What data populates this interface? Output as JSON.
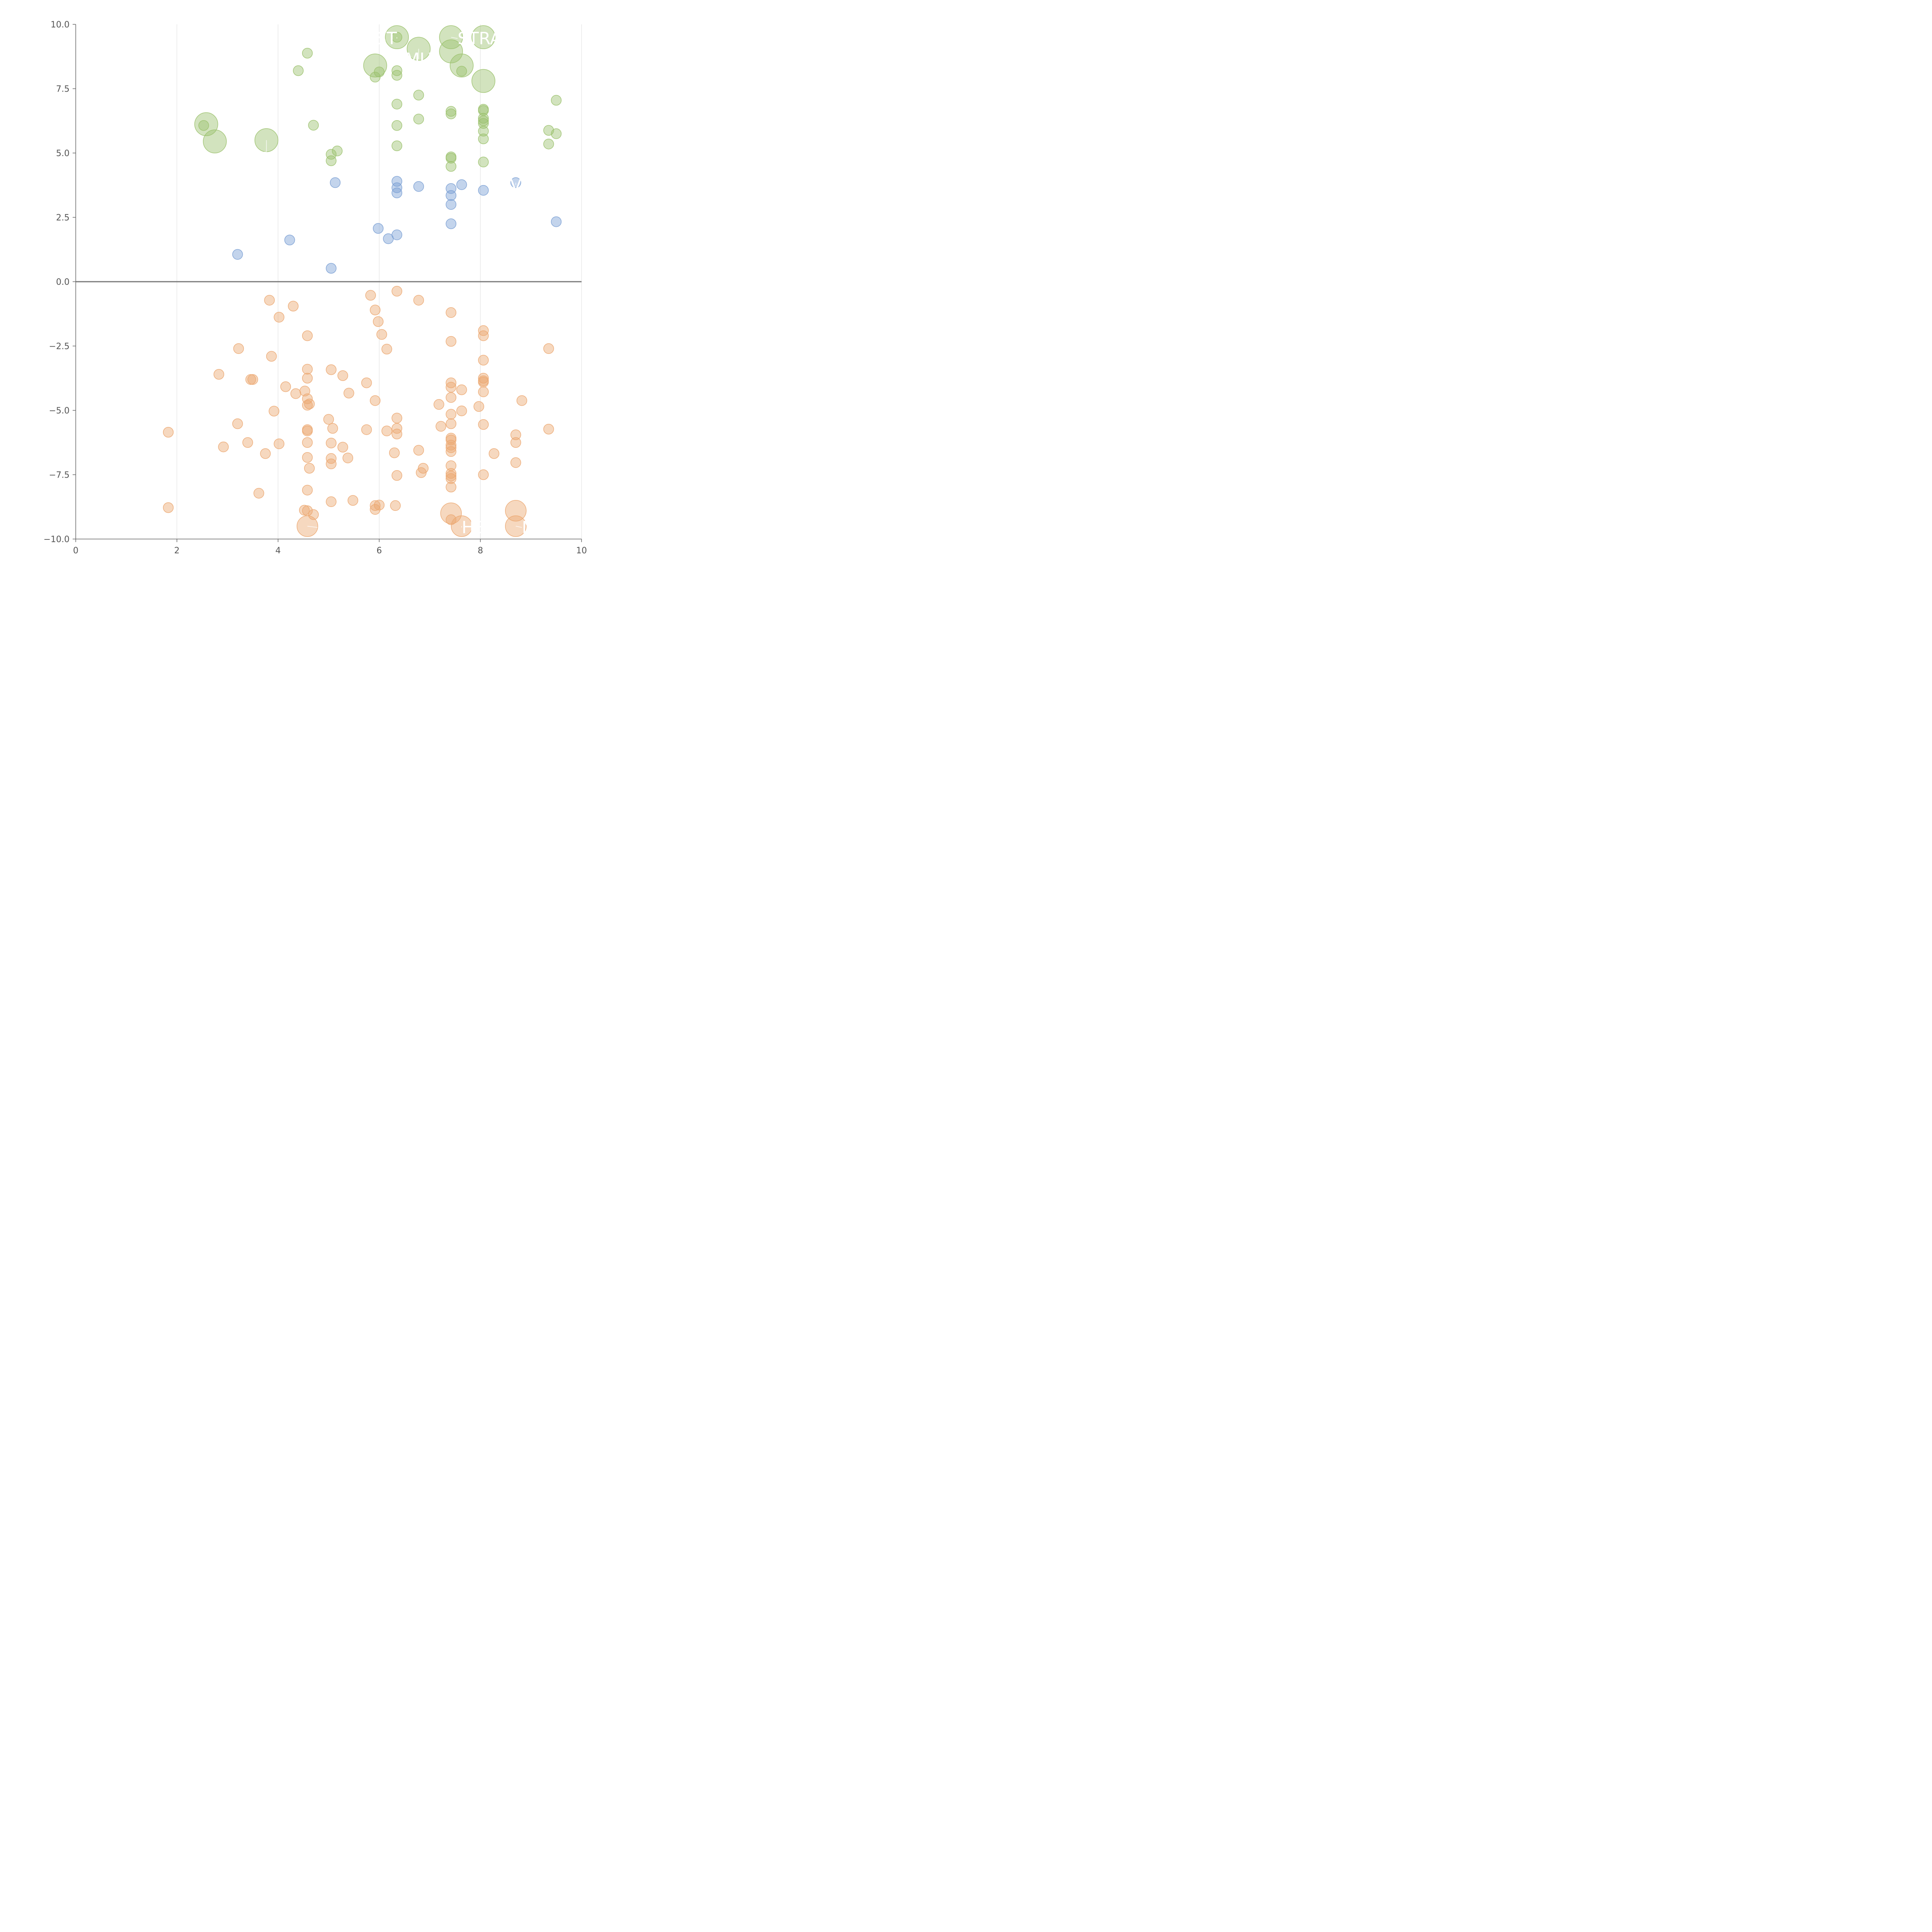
{
  "chart_data": {
    "type": "scatter",
    "title": "",
    "xlabel": "",
    "ylabel": "",
    "xlim": [
      0,
      10
    ],
    "ylim": [
      -10,
      10
    ],
    "x_ticks": [
      "0",
      "2",
      "4",
      "6",
      "8",
      "10"
    ],
    "y_ticks": [
      "10.0",
      "7.5",
      "5.0",
      "2.5",
      "0.0",
      "−2.5",
      "−5.0",
      "−7.5",
      "−10.0"
    ],
    "grid": "vertical",
    "zero_line": true,
    "series": [
      {
        "color": "#9cc26e",
        "points": [
          [
            6.35,
            9.5,
            30
          ],
          [
            7.42,
            9.5,
            30
          ],
          [
            8.06,
            9.5,
            30
          ],
          [
            6.78,
            9.05,
            30
          ],
          [
            7.42,
            8.95,
            30
          ],
          [
            5.92,
            8.4,
            30
          ],
          [
            7.63,
            8.4,
            30
          ],
          [
            8.06,
            7.8,
            30
          ],
          [
            2.58,
            6.12,
            30
          ],
          [
            2.75,
            5.45,
            30
          ],
          [
            3.77,
            5.5,
            30
          ],
          [
            6.35,
            9.5,
            13
          ],
          [
            4.58,
            8.88,
            13
          ],
          [
            4.4,
            8.2,
            13
          ],
          [
            6.0,
            8.15,
            13
          ],
          [
            5.92,
            7.95,
            13
          ],
          [
            6.35,
            8.2,
            13
          ],
          [
            6.35,
            8.02,
            13
          ],
          [
            7.63,
            8.18,
            13
          ],
          [
            6.78,
            7.25,
            13
          ],
          [
            9.5,
            7.05,
            13
          ],
          [
            6.35,
            6.9,
            13
          ],
          [
            8.06,
            6.7,
            13
          ],
          [
            8.06,
            6.65,
            13
          ],
          [
            7.42,
            6.62,
            13
          ],
          [
            7.42,
            6.52,
            13
          ],
          [
            8.06,
            6.35,
            13
          ],
          [
            8.06,
            6.25,
            13
          ],
          [
            8.06,
            6.15,
            13
          ],
          [
            6.78,
            6.32,
            13
          ],
          [
            4.7,
            6.08,
            13
          ],
          [
            6.35,
            6.07,
            13
          ],
          [
            2.53,
            6.07,
            13
          ],
          [
            9.35,
            5.88,
            13
          ],
          [
            8.06,
            5.85,
            13
          ],
          [
            9.5,
            5.75,
            13
          ],
          [
            8.06,
            5.55,
            13
          ],
          [
            9.35,
            5.35,
            13
          ],
          [
            6.35,
            5.28,
            13
          ],
          [
            5.17,
            5.08,
            13
          ],
          [
            5.05,
            4.95,
            13
          ],
          [
            5.05,
            4.7,
            13
          ],
          [
            7.42,
            4.85,
            13
          ],
          [
            7.42,
            4.8,
            13
          ],
          [
            8.06,
            4.65,
            13
          ],
          [
            7.42,
            4.48,
            13
          ]
        ]
      },
      {
        "color": "#7ba0d4",
        "points": [
          [
            5.13,
            3.85,
            13
          ],
          [
            6.35,
            3.9,
            13
          ],
          [
            6.35,
            3.65,
            13
          ],
          [
            6.35,
            3.45,
            13
          ],
          [
            6.78,
            3.7,
            13
          ],
          [
            7.42,
            3.62,
            13
          ],
          [
            7.42,
            3.35,
            13
          ],
          [
            7.42,
            3.0,
            13
          ],
          [
            7.63,
            3.77,
            13
          ],
          [
            8.06,
            3.55,
            13
          ],
          [
            8.7,
            3.85,
            13
          ],
          [
            9.5,
            2.33,
            13
          ],
          [
            7.42,
            2.25,
            13
          ],
          [
            5.98,
            2.07,
            13
          ],
          [
            6.35,
            1.82,
            13
          ],
          [
            6.18,
            1.67,
            13
          ],
          [
            4.23,
            1.62,
            13
          ],
          [
            3.2,
            1.06,
            13
          ],
          [
            5.05,
            0.52,
            13
          ]
        ]
      },
      {
        "color": "#eca872",
        "points": [
          [
            7.42,
            -9.0,
            27
          ],
          [
            8.7,
            -8.9,
            27
          ],
          [
            4.58,
            -9.5,
            27
          ],
          [
            7.63,
            -9.5,
            27
          ],
          [
            8.7,
            -9.5,
            27
          ],
          [
            6.35,
            -0.37,
            13
          ],
          [
            5.83,
            -0.53,
            13
          ],
          [
            3.83,
            -0.72,
            13
          ],
          [
            6.78,
            -0.72,
            13
          ],
          [
            4.3,
            -0.95,
            13
          ],
          [
            5.92,
            -1.1,
            13
          ],
          [
            7.42,
            -1.2,
            13
          ],
          [
            4.02,
            -1.38,
            13
          ],
          [
            5.98,
            -1.55,
            13
          ],
          [
            6.05,
            -2.05,
            13
          ],
          [
            4.58,
            -2.1,
            13
          ],
          [
            8.06,
            -1.9,
            13
          ],
          [
            8.06,
            -2.1,
            13
          ],
          [
            7.42,
            -2.32,
            13
          ],
          [
            3.22,
            -2.6,
            13
          ],
          [
            6.15,
            -2.62,
            13
          ],
          [
            9.35,
            -2.6,
            13
          ],
          [
            3.87,
            -2.9,
            13
          ],
          [
            8.06,
            -3.05,
            13
          ],
          [
            4.58,
            -3.4,
            13
          ],
          [
            5.05,
            -3.42,
            13
          ],
          [
            2.83,
            -3.6,
            13
          ],
          [
            5.28,
            -3.65,
            13
          ],
          [
            4.58,
            -3.75,
            13
          ],
          [
            3.5,
            -3.8,
            13
          ],
          [
            3.46,
            -3.8,
            13
          ],
          [
            8.06,
            -3.75,
            13
          ],
          [
            8.06,
            -3.85,
            13
          ],
          [
            8.06,
            -3.9,
            13
          ],
          [
            5.75,
            -3.93,
            13
          ],
          [
            7.42,
            -3.93,
            13
          ],
          [
            7.42,
            -4.1,
            13
          ],
          [
            4.15,
            -4.08,
            13
          ],
          [
            7.63,
            -4.2,
            13
          ],
          [
            4.53,
            -4.25,
            13
          ],
          [
            8.06,
            -4.28,
            13
          ],
          [
            4.35,
            -4.35,
            13
          ],
          [
            5.4,
            -4.33,
            13
          ],
          [
            4.58,
            -4.55,
            13
          ],
          [
            7.42,
            -4.5,
            13
          ],
          [
            5.92,
            -4.62,
            13
          ],
          [
            8.82,
            -4.62,
            13
          ],
          [
            4.62,
            -4.75,
            13
          ],
          [
            4.58,
            -4.8,
            13
          ],
          [
            7.18,
            -4.77,
            13
          ],
          [
            7.97,
            -4.85,
            13
          ],
          [
            3.92,
            -5.03,
            13
          ],
          [
            7.63,
            -5.02,
            13
          ],
          [
            7.42,
            -5.15,
            13
          ],
          [
            6.35,
            -5.3,
            13
          ],
          [
            5.0,
            -5.35,
            13
          ],
          [
            3.2,
            -5.52,
            13
          ],
          [
            7.42,
            -5.52,
            13
          ],
          [
            8.06,
            -5.55,
            13
          ],
          [
            7.22,
            -5.62,
            13
          ],
          [
            5.08,
            -5.7,
            13
          ],
          [
            6.35,
            -5.7,
            13
          ],
          [
            9.35,
            -5.73,
            13
          ],
          [
            5.75,
            -5.75,
            13
          ],
          [
            4.58,
            -5.75,
            13
          ],
          [
            4.58,
            -5.8,
            13
          ],
          [
            6.15,
            -5.8,
            13
          ],
          [
            1.83,
            -5.85,
            13
          ],
          [
            6.35,
            -5.92,
            13
          ],
          [
            8.7,
            -5.95,
            13
          ],
          [
            7.42,
            -6.08,
            13
          ],
          [
            7.42,
            -6.15,
            13
          ],
          [
            4.58,
            -6.25,
            13
          ],
          [
            5.05,
            -6.27,
            13
          ],
          [
            3.4,
            -6.25,
            13
          ],
          [
            4.02,
            -6.3,
            13
          ],
          [
            8.7,
            -6.25,
            13
          ],
          [
            7.42,
            -6.35,
            13
          ],
          [
            7.42,
            -6.45,
            13
          ],
          [
            2.92,
            -6.42,
            13
          ],
          [
            5.28,
            -6.43,
            13
          ],
          [
            7.42,
            -6.6,
            13
          ],
          [
            6.78,
            -6.55,
            13
          ],
          [
            6.3,
            -6.65,
            13
          ],
          [
            3.75,
            -6.68,
            13
          ],
          [
            8.27,
            -6.68,
            13
          ],
          [
            4.58,
            -6.83,
            13
          ],
          [
            5.05,
            -6.87,
            13
          ],
          [
            5.38,
            -6.85,
            13
          ],
          [
            8.7,
            -7.03,
            13
          ],
          [
            5.05,
            -7.08,
            13
          ],
          [
            7.42,
            -7.15,
            13
          ],
          [
            4.62,
            -7.25,
            13
          ],
          [
            6.87,
            -7.25,
            13
          ],
          [
            6.83,
            -7.42,
            13
          ],
          [
            7.42,
            -7.45,
            13
          ],
          [
            7.42,
            -7.55,
            13
          ],
          [
            6.35,
            -7.53,
            13
          ],
          [
            8.06,
            -7.5,
            13
          ],
          [
            7.42,
            -7.65,
            13
          ],
          [
            7.42,
            -7.98,
            13
          ],
          [
            4.58,
            -8.1,
            13
          ],
          [
            3.62,
            -8.22,
            13
          ],
          [
            5.48,
            -8.5,
            13
          ],
          [
            5.05,
            -8.55,
            13
          ],
          [
            6.0,
            -8.68,
            13
          ],
          [
            5.92,
            -8.7,
            13
          ],
          [
            6.32,
            -8.7,
            13
          ],
          [
            1.83,
            -8.78,
            13
          ],
          [
            4.52,
            -8.88,
            13
          ],
          [
            4.58,
            -8.9,
            13
          ],
          [
            5.92,
            -8.85,
            13
          ],
          [
            4.7,
            -9.05,
            13
          ],
          [
            7.42,
            -9.25,
            13
          ]
        ]
      }
    ],
    "labels": [
      {
        "text": "STRA",
        "x": 7.42,
        "y": 9.5,
        "lx": 7.55,
        "ly": 9.45,
        "anchor": "start"
      },
      {
        "text": "ST",
        "x": 6.35,
        "y": 9.5,
        "lx": 6.35,
        "ly": 9.45,
        "anchor": "end"
      },
      {
        "text": "MU",
        "x": 6.78,
        "y": 9.05,
        "lx": 6.78,
        "ly": 8.65,
        "anchor": "middle"
      },
      {
        "text": "He",
        "x": 3.77,
        "y": 5.5,
        "lx": 3.77,
        "ly": 4.8,
        "anchor": "middle"
      },
      {
        "text": "V",
        "x": 8.7,
        "y": 3.85,
        "lx": 8.7,
        "ly": 3.75,
        "anchor": "middle"
      },
      {
        "text": "P",
        "x": 4.58,
        "y": -9.5,
        "lx": 4.78,
        "ly": -9.55,
        "anchor": "start"
      },
      {
        "text": "HE",
        "x": 7.63,
        "y": -9.5,
        "lx": 7.63,
        "ly": -9.55,
        "anchor": "start"
      },
      {
        "text": "N",
        "x": 8.7,
        "y": -9.5,
        "lx": 8.82,
        "ly": -9.55,
        "anchor": "start"
      }
    ]
  }
}
